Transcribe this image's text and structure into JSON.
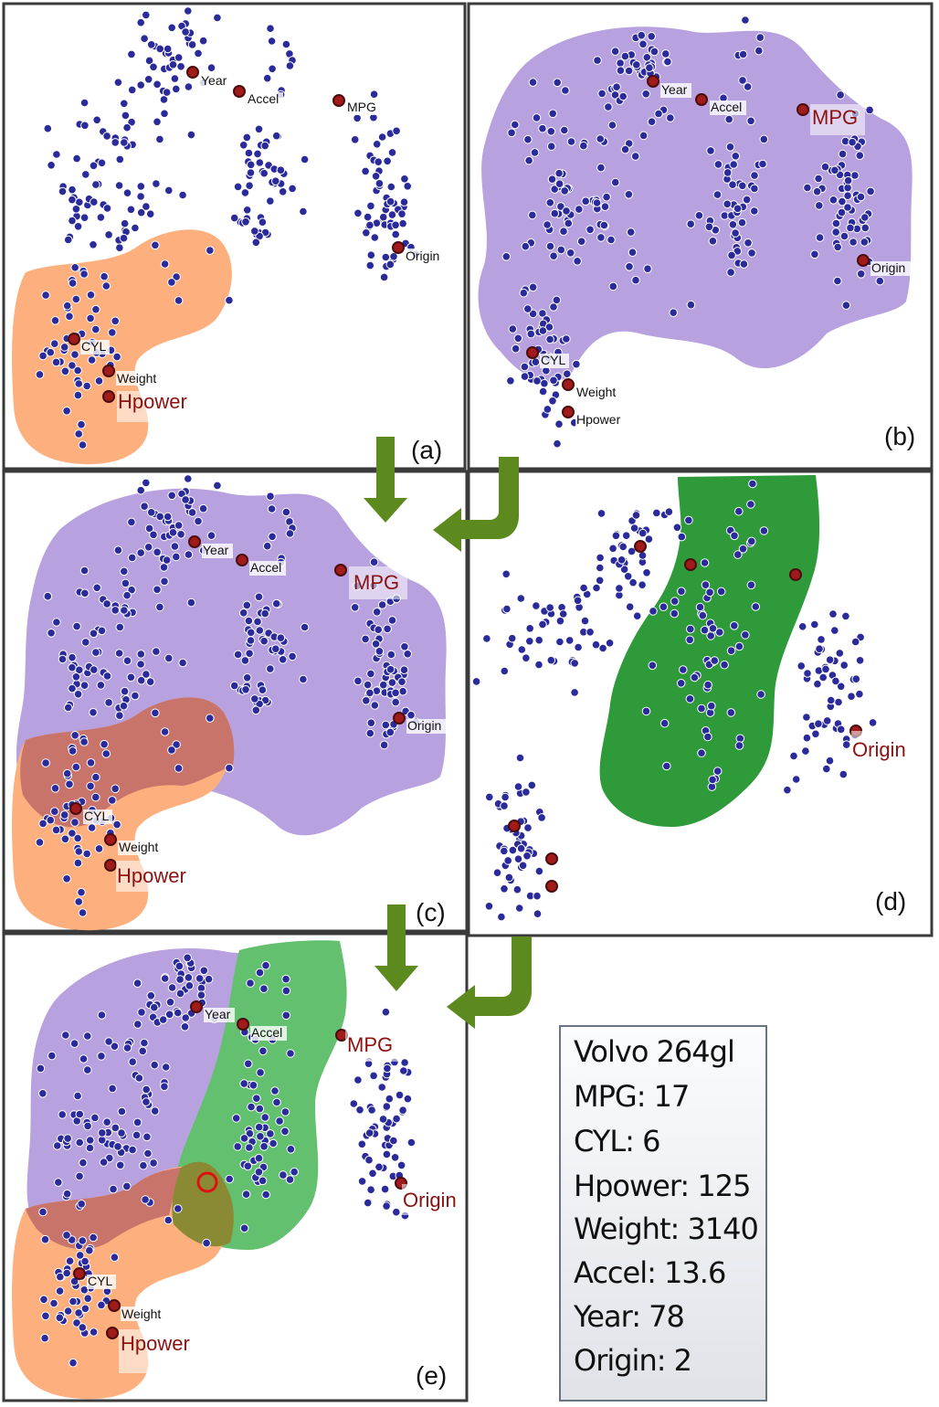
{
  "panels": [
    {
      "id": "a",
      "letter": "(a)",
      "regions": [
        "orange"
      ],
      "labels": {
        "Year": "Year",
        "Accel": "Accel",
        "MPG": "MPG",
        "Origin": "Origin",
        "CYL": "CYL",
        "Weight": "Weight",
        "Hpower": "Hpower"
      },
      "highlight": "Hpower"
    },
    {
      "id": "b",
      "letter": "(b)",
      "regions": [
        "purple"
      ],
      "labels": {
        "Year": "Year",
        "Accel": "Accel",
        "MPG": "MPG",
        "Origin": "Origin",
        "CYL": "CYL",
        "Weight": "Weight",
        "Hpower": "Hpower"
      },
      "highlight": "MPG"
    },
    {
      "id": "c",
      "letter": "(c)",
      "regions": [
        "purple",
        "orange"
      ],
      "labels": {
        "Year": "Year",
        "Accel": "Accel",
        "MPG": "MPG",
        "Origin": "Origin",
        "CYL": "CYL",
        "Weight": "Weight",
        "Hpower": "Hpower"
      },
      "highlight": "MPG, Hpower"
    },
    {
      "id": "d",
      "letter": "(d)",
      "regions": [
        "green"
      ],
      "labels": {
        "Origin": "Origin"
      },
      "highlight": "Origin"
    },
    {
      "id": "e",
      "letter": "(e)",
      "regions": [
        "purple",
        "green",
        "orange"
      ],
      "labels": {
        "Year": "Year",
        "Accel": "Accel",
        "MPG": "MPG",
        "Origin": "Origin",
        "CYL": "CYL",
        "Weight": "Weight",
        "Hpower": "Hpower"
      },
      "highlight": "MPG, Origin, Hpower"
    }
  ],
  "info_box": {
    "lines": [
      "Volvo 264gl",
      "MPG: 17",
      "CYL: 6",
      "Hpower: 125",
      "Weight: 3140",
      "Accel: 13.6",
      "Year: 78",
      "Origin: 2"
    ]
  },
  "colors": {
    "dot": "#2b2a9b",
    "anchor": "#a21b1b",
    "orange_region": "#fdb07e",
    "purple_region": "#b7a1de",
    "green_region": "#2f9a3a",
    "green_region_light": "#62c06e",
    "overlap_orange_purple": "#c9746a",
    "overlap_orange_green": "#8a8a34",
    "arrow": "#5c8a1e",
    "highlight_label": "#8c1111"
  }
}
